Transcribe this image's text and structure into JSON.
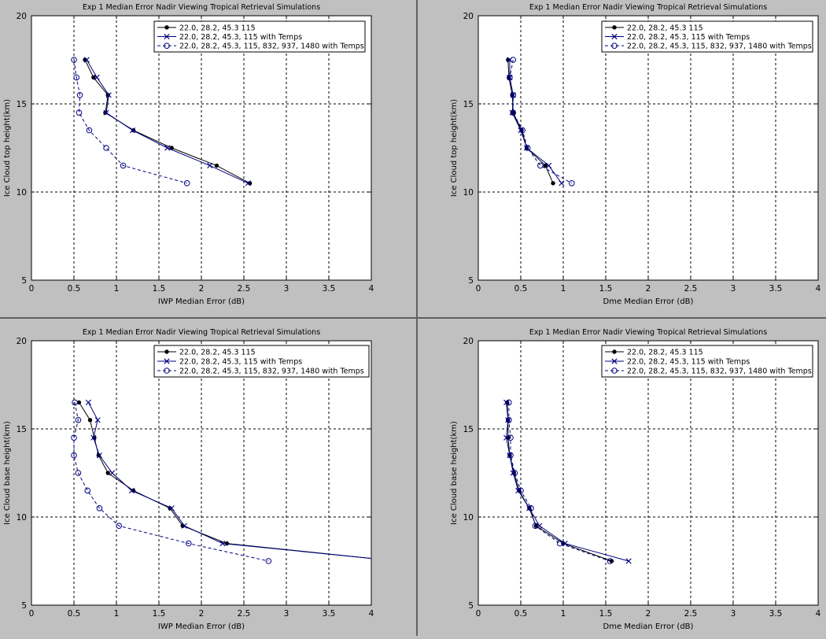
{
  "colors": {
    "figure_bg": "#c0c0c0",
    "panel_bg": "#ffffff",
    "divider": "#606060",
    "series_black": "#000000",
    "series_blue": "#000080"
  },
  "chart_data": [
    {
      "type": "line",
      "title": "Exp 1 Median Error Nadir Viewing Tropical Retrieval Simulations",
      "xlabel": "IWP Median Error (dB)",
      "ylabel": "Ice Cloud top height(km)",
      "xlim": [
        0,
        4
      ],
      "ylim": [
        5,
        20
      ],
      "xticks": [
        "0",
        "0.5",
        "1",
        "1.5",
        "2",
        "2.5",
        "3",
        "3.5",
        "4"
      ],
      "yticks": [
        "5",
        "10",
        "15",
        "20"
      ],
      "grid": true,
      "legend_position": "top-right",
      "series": [
        {
          "name": "22.0, 28.2, 45.3 115",
          "color": "#000000",
          "marker": "dot",
          "dash": false,
          "x": [
            0.63,
            0.73,
            0.9,
            0.87,
            1.2,
            1.65,
            2.18,
            2.57
          ],
          "y": [
            17.5,
            16.5,
            15.5,
            14.5,
            13.5,
            12.5,
            11.5,
            10.5
          ]
        },
        {
          "name": "22.0, 28.2, 45.3, 115 with Temps",
          "color": "#000080",
          "marker": "x",
          "dash": false,
          "x": [
            0.65,
            0.77,
            0.91,
            0.88,
            1.19,
            1.6,
            2.1,
            2.55
          ],
          "y": [
            17.5,
            16.5,
            15.5,
            14.5,
            13.5,
            12.5,
            11.5,
            10.5
          ]
        },
        {
          "name": "22.0, 28.2, 45.3, 115, 832, 937, 1480 with Temps",
          "color": "#000080",
          "marker": "circle",
          "dash": true,
          "x": [
            0.5,
            0.53,
            0.57,
            0.56,
            0.68,
            0.88,
            1.08,
            1.83
          ],
          "y": [
            17.5,
            16.5,
            15.5,
            14.5,
            13.5,
            12.5,
            11.5,
            10.5
          ]
        }
      ]
    },
    {
      "type": "line",
      "title": "Exp 1 Median Error Nadir Viewing Tropical Retrieval Simulations",
      "xlabel": "Dme Median Error (dB)",
      "ylabel": "Ice Cloud top height(km)",
      "xlim": [
        0,
        4
      ],
      "ylim": [
        5,
        20
      ],
      "xticks": [
        "0",
        "0.5",
        "1",
        "1.5",
        "2",
        "2.5",
        "3",
        "3.5",
        "4"
      ],
      "yticks": [
        "5",
        "10",
        "15",
        "20"
      ],
      "grid": true,
      "legend_position": "top-right",
      "series": [
        {
          "name": "22.0, 28.2, 45.3 115",
          "color": "#000000",
          "marker": "dot",
          "dash": false,
          "x": [
            0.35,
            0.36,
            0.4,
            0.41,
            0.51,
            0.57,
            0.79,
            0.88
          ],
          "y": [
            17.5,
            16.5,
            15.5,
            14.5,
            13.5,
            12.5,
            11.5,
            10.5
          ]
        },
        {
          "name": "22.0, 28.2, 45.3, 115 with Temps",
          "color": "#000080",
          "marker": "x",
          "dash": false,
          "x": [
            0.37,
            0.37,
            0.41,
            0.4,
            0.5,
            0.57,
            0.83,
            0.98
          ],
          "y": [
            17.5,
            16.5,
            15.5,
            14.5,
            13.5,
            12.5,
            11.5,
            10.5
          ]
        },
        {
          "name": "22.0, 28.2, 45.3, 115, 832, 937, 1480 with Temps",
          "color": "#000080",
          "marker": "circle",
          "dash": true,
          "x": [
            0.41,
            0.37,
            0.41,
            0.41,
            0.52,
            0.58,
            0.73,
            1.1
          ],
          "y": [
            17.5,
            16.5,
            15.5,
            14.5,
            13.5,
            12.5,
            11.5,
            10.5
          ]
        }
      ]
    },
    {
      "type": "line",
      "title": "Exp 1 Median Error Nadir Viewing Tropical Retrieval Simulations",
      "xlabel": "IWP Median Error (dB)",
      "ylabel": "Ice Cloud base height(km)",
      "xlim": [
        0,
        4
      ],
      "ylim": [
        5,
        20
      ],
      "xticks": [
        "0",
        "0.5",
        "1",
        "1.5",
        "2",
        "2.5",
        "3",
        "3.5",
        "4"
      ],
      "yticks": [
        "5",
        "10",
        "15",
        "20"
      ],
      "grid": true,
      "legend_position": "top-right",
      "series": [
        {
          "name": "22.0, 28.2, 45.3 115",
          "color": "#000000",
          "marker": "dot",
          "dash": false,
          "x": [
            0.56,
            0.69,
            0.74,
            0.79,
            0.9,
            1.2,
            1.63,
            1.78,
            2.3,
            4.0
          ],
          "y": [
            16.5,
            15.5,
            14.5,
            13.5,
            12.5,
            11.5,
            10.5,
            9.5,
            8.5,
            7.65
          ]
        },
        {
          "name": "22.0, 28.2, 45.3, 115 with Temps",
          "color": "#000080",
          "marker": "x",
          "dash": false,
          "x": [
            0.67,
            0.78,
            0.73,
            0.8,
            0.95,
            1.18,
            1.65,
            1.8,
            2.25,
            4.0
          ],
          "y": [
            16.5,
            15.5,
            14.5,
            13.5,
            12.5,
            11.5,
            10.5,
            9.5,
            8.5,
            7.65
          ]
        },
        {
          "name": "22.0, 28.2, 45.3, 115, 832, 937, 1480 with Temps",
          "color": "#000080",
          "marker": "circle",
          "dash": true,
          "x": [
            0.51,
            0.55,
            0.5,
            0.5,
            0.55,
            0.66,
            0.8,
            1.03,
            1.85,
            2.79
          ],
          "y": [
            16.5,
            15.5,
            14.5,
            13.5,
            12.5,
            11.5,
            10.5,
            9.5,
            8.5,
            7.5
          ]
        }
      ]
    },
    {
      "type": "line",
      "title": "Exp 1 Median Error Nadir Viewing Tropical Retrieval Simulations",
      "xlabel": "Dme Median Error (dB)",
      "ylabel": "Ice Cloud base height(km)",
      "xlim": [
        0,
        4
      ],
      "ylim": [
        5,
        20
      ],
      "xticks": [
        "0",
        "0.5",
        "1",
        "1.5",
        "2",
        "2.5",
        "3",
        "3.5",
        "4"
      ],
      "yticks": [
        "5",
        "10",
        "15",
        "20"
      ],
      "grid": true,
      "legend_position": "top-right",
      "series": [
        {
          "name": "22.0, 28.2, 45.3 115",
          "color": "#000000",
          "marker": "dot",
          "dash": false,
          "x": [
            0.34,
            0.35,
            0.35,
            0.37,
            0.42,
            0.48,
            0.6,
            0.68,
            1.0,
            1.57
          ],
          "y": [
            16.5,
            15.5,
            14.5,
            13.5,
            12.5,
            11.5,
            10.5,
            9.5,
            8.5,
            7.5
          ]
        },
        {
          "name": "22.0, 28.2, 45.3, 115 with Temps",
          "color": "#000080",
          "marker": "x",
          "dash": false,
          "x": [
            0.33,
            0.35,
            0.33,
            0.37,
            0.41,
            0.47,
            0.6,
            0.72,
            1.02,
            1.77
          ],
          "y": [
            16.5,
            15.5,
            14.5,
            13.5,
            12.5,
            11.5,
            10.5,
            9.5,
            8.5,
            7.5
          ]
        },
        {
          "name": "22.0, 28.2, 45.3, 115, 832, 937, 1480 with Temps",
          "color": "#000080",
          "marker": "circle",
          "dash": true,
          "x": [
            0.36,
            0.36,
            0.38,
            0.38,
            0.43,
            0.5,
            0.62,
            0.67,
            0.96,
            1.55
          ],
          "y": [
            16.5,
            15.5,
            14.5,
            13.5,
            12.5,
            11.5,
            10.5,
            9.5,
            8.5,
            7.5
          ]
        }
      ]
    }
  ]
}
